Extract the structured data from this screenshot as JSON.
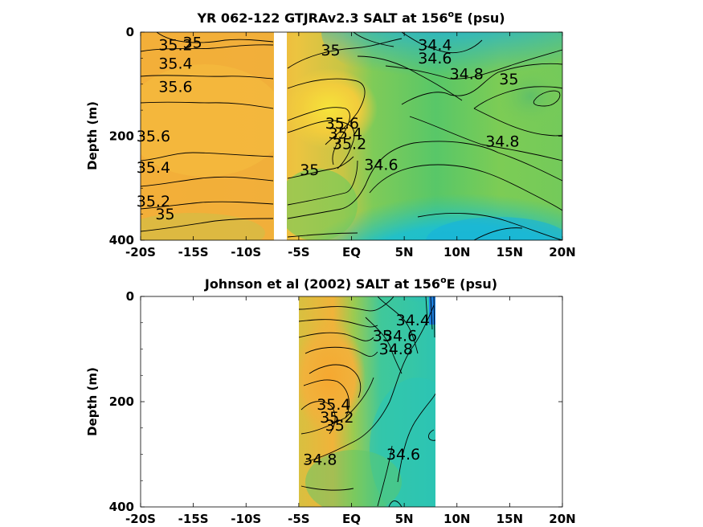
{
  "chart_data": [
    {
      "type": "heatmap",
      "title_main": "YR 062-122 GTJRAv2.3 SALT at 156",
      "title_sup": "o",
      "title_tail": "E (psu)",
      "ylabel": "Depth (m)",
      "xlabel": "",
      "xlim": [
        -20,
        20
      ],
      "ylim": [
        0,
        400
      ],
      "y_reversed": true,
      "x_ticks": [
        -20,
        -15,
        -10,
        -5,
        0,
        5,
        10,
        15,
        20
      ],
      "x_tick_labels": [
        "-20S",
        "-15S",
        "-10S",
        "-5S",
        "EQ",
        "5N",
        "10N",
        "15N",
        "20N"
      ],
      "y_ticks": [
        0,
        200,
        400
      ],
      "y_tick_labels": [
        "0",
        "200",
        "400"
      ],
      "missing_band": {
        "x": [
          -7.2,
          -6.0
        ],
        "note": "no data"
      },
      "contour_levels": [
        34.4,
        34.6,
        34.8,
        35.0,
        35.2,
        35.4,
        35.6
      ],
      "colors": {
        "low": "#1aa8d8",
        "mid_low": "#2ec4b0",
        "mid": "#7ccc55",
        "mid_high": "#d8c040",
        "high": "#f5a531",
        "max": "#f3e23a"
      },
      "contour_labels": [
        {
          "text": "35.2",
          "x": -18.3,
          "y": 35
        },
        {
          "text": "35",
          "x": -16.0,
          "y": 30
        },
        {
          "text": "35.4",
          "x": -18.3,
          "y": 70
        },
        {
          "text": "35.6",
          "x": -18.3,
          "y": 115
        },
        {
          "text": "35.6",
          "x": -20.4,
          "y": 210
        },
        {
          "text": "35.4",
          "x": -20.4,
          "y": 270
        },
        {
          "text": "35.2",
          "x": -20.4,
          "y": 335
        },
        {
          "text": "35",
          "x": -18.6,
          "y": 360
        },
        {
          "text": "35",
          "x": -2.9,
          "y": 45
        },
        {
          "text": "35.6",
          "x": -2.5,
          "y": 185
        },
        {
          "text": "35.4",
          "x": -2.2,
          "y": 205
        },
        {
          "text": "35.2",
          "x": -1.8,
          "y": 225
        },
        {
          "text": "35",
          "x": -4.9,
          "y": 275
        },
        {
          "text": "34.6",
          "x": 1.2,
          "y": 265
        },
        {
          "text": "34.4",
          "x": 6.3,
          "y": 35
        },
        {
          "text": "34.6",
          "x": 6.3,
          "y": 60
        },
        {
          "text": "34.8",
          "x": 9.3,
          "y": 90
        },
        {
          "text": "35",
          "x": 14.0,
          "y": 100
        },
        {
          "text": "34.8",
          "x": 12.7,
          "y": 220
        }
      ]
    },
    {
      "type": "heatmap",
      "title_main": "Johnson et al (2002) SALT at 156",
      "title_sup": "o",
      "title_tail": "E (psu)",
      "ylabel": "Depth (m)",
      "xlabel": "",
      "xlim": [
        -20,
        20
      ],
      "ylim": [
        0,
        400
      ],
      "y_reversed": true,
      "x_ticks": [
        -20,
        -15,
        -10,
        -5,
        0,
        5,
        10,
        15,
        20
      ],
      "x_tick_labels": [
        "-20S",
        "-15S",
        "-10S",
        "-5S",
        "EQ",
        "5N",
        "10N",
        "15N",
        "20N"
      ],
      "y_ticks": [
        0,
        200,
        400
      ],
      "y_tick_labels": [
        "0",
        "200",
        "400"
      ],
      "data_range_x": [
        -5,
        8
      ],
      "contour_levels": [
        34.4,
        34.6,
        34.8,
        35.0,
        35.2,
        35.4
      ],
      "colors": {
        "low": "#1aa8d8",
        "mid_low": "#2ec4b0",
        "mid": "#7ccc55",
        "high": "#f5a531"
      },
      "contour_labels": [
        {
          "text": "34.4",
          "x": 4.2,
          "y": 55
        },
        {
          "text": "34.6",
          "x": 3.0,
          "y": 85
        },
        {
          "text": "34.8",
          "x": 2.6,
          "y": 110
        },
        {
          "text": "35",
          "x": 2.0,
          "y": 85
        },
        {
          "text": "35.4",
          "x": -3.3,
          "y": 215
        },
        {
          "text": "35.2",
          "x": -3.0,
          "y": 240
        },
        {
          "text": "35",
          "x": -2.5,
          "y": 255
        },
        {
          "text": "34.8",
          "x": -4.6,
          "y": 320
        },
        {
          "text": "34.6",
          "x": 3.3,
          "y": 310
        }
      ]
    }
  ]
}
